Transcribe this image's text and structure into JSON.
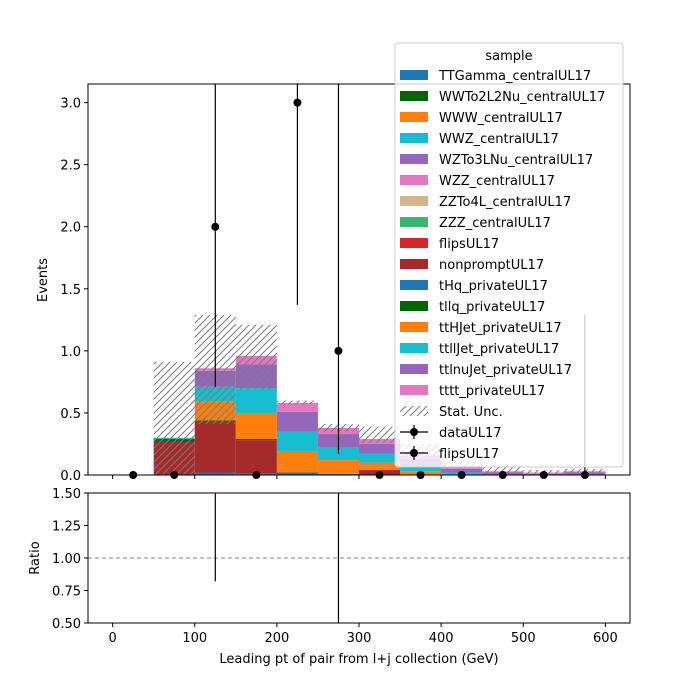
{
  "chart_data": [
    {
      "type": "bar",
      "subtype": "stacked-histogram",
      "xlabel": "",
      "ylabel": "Events",
      "xlim": [
        -30,
        630
      ],
      "ylim": [
        0,
        3.15
      ],
      "xticks": [
        0,
        100,
        200,
        300,
        400,
        500,
        600
      ],
      "yticks": [
        0.0,
        0.5,
        1.0,
        1.5,
        2.0,
        2.5,
        3.0
      ],
      "ytick_labels": [
        "0.0",
        "0.5",
        "1.0",
        "1.5",
        "2.0",
        "2.5",
        "3.0"
      ],
      "bin_edges": [
        0,
        50,
        100,
        150,
        200,
        250,
        300,
        350,
        400,
        450,
        500,
        550,
        600
      ],
      "stack": [
        {
          "name": "TTGamma_centralUL17",
          "color": "#1f77b4",
          "values": [
            0,
            0,
            0.02,
            0.01,
            0.02,
            0.01,
            0,
            0,
            0,
            0,
            0,
            0
          ]
        },
        {
          "name": "WWTo2L2Nu_centralUL17",
          "color": "#006400",
          "values": [
            0,
            0,
            0,
            0,
            0,
            0,
            0,
            0,
            0,
            0,
            0,
            0
          ]
        },
        {
          "name": "WWW_centralUL17",
          "color": "#ff7f0e",
          "values": [
            0,
            0,
            0,
            0,
            0,
            0,
            0,
            0,
            0,
            0,
            0,
            0
          ]
        },
        {
          "name": "WWZ_centralUL17",
          "color": "#17becf",
          "values": [
            0,
            0,
            0,
            0,
            0,
            0,
            0,
            0,
            0,
            0,
            0,
            0
          ]
        },
        {
          "name": "WZTo3LNu_centralUL17",
          "color": "#9467bd",
          "values": [
            0,
            0,
            0,
            0,
            0,
            0,
            0,
            0,
            0,
            0,
            0,
            0
          ]
        },
        {
          "name": "WZZ_centralUL17",
          "color": "#e377c2",
          "values": [
            0,
            0,
            0,
            0,
            0,
            0,
            0,
            0,
            0,
            0,
            0,
            0
          ]
        },
        {
          "name": "ZZTo4L_centralUL17",
          "color": "#d2b48c",
          "values": [
            0,
            0,
            0,
            0,
            0,
            0,
            0,
            0,
            0,
            0,
            0,
            0
          ]
        },
        {
          "name": "ZZZ_centralUL17",
          "color": "#3cb371",
          "values": [
            0,
            0,
            0,
            0,
            0,
            0,
            0,
            0,
            0,
            0,
            0,
            0
          ]
        },
        {
          "name": "flipsUL17",
          "color": "#d62728",
          "values": [
            0,
            0,
            0,
            0,
            0,
            0,
            0,
            0,
            0,
            0,
            0,
            0
          ]
        },
        {
          "name": "nonpromptUL17",
          "color": "#a52a2a",
          "values": [
            0,
            0.27,
            0.41,
            0.27,
            0,
            0,
            0.04,
            0,
            0,
            0,
            0,
            0
          ]
        },
        {
          "name": "tHq_privateUL17",
          "color": "#1f77b4",
          "values": [
            0,
            0,
            0,
            0,
            0,
            0,
            0,
            0,
            0,
            0,
            0,
            0
          ]
        },
        {
          "name": "tllq_privateUL17",
          "color": "#006400",
          "values": [
            0,
            0.02,
            0.01,
            0.01,
            0,
            0,
            0,
            0,
            0,
            0,
            0,
            0
          ]
        },
        {
          "name": "ttHJet_privateUL17",
          "color": "#ff7f0e",
          "values": [
            0,
            0,
            0.15,
            0.21,
            0.17,
            0.11,
            0.06,
            0.03,
            0,
            0,
            0,
            0
          ]
        },
        {
          "name": "ttllJet_privateUL17",
          "color": "#17becf",
          "values": [
            0,
            0.01,
            0.12,
            0.2,
            0.16,
            0.1,
            0.07,
            0.04,
            0.02,
            0,
            0,
            0
          ]
        },
        {
          "name": "ttlnuJet_privateUL17",
          "color": "#9467bd",
          "values": [
            0,
            0,
            0.13,
            0.19,
            0.16,
            0.11,
            0.08,
            0.06,
            0.03,
            0.02,
            0.01,
            0.02
          ]
        },
        {
          "name": "tttt_privateUL17",
          "color": "#e377c2",
          "values": [
            0,
            0,
            0.02,
            0.07,
            0.07,
            0.05,
            0.04,
            0.03,
            0.02,
            0.01,
            0.01,
            0.01
          ]
        }
      ],
      "stat_unc": {
        "name": "Stat. Unc.",
        "low": [
          0,
          0,
          0.41,
          0.69,
          0.57,
          0.35,
          0.26,
          0.15,
          0.06,
          0.02,
          0.01,
          0.02
        ],
        "high": [
          0,
          0.91,
          1.29,
          1.21,
          0.6,
          0.41,
          0.39,
          0.25,
          0.11,
          0.08,
          0.04,
          0.05
        ]
      },
      "data": {
        "name": "dataUL17",
        "x": [
          25,
          75,
          125,
          175,
          225,
          275,
          325,
          375,
          425,
          475,
          525,
          575
        ],
        "y": [
          0,
          0,
          2,
          0,
          3,
          1,
          0,
          0,
          0,
          0,
          0,
          0
        ],
        "yerr_low": [
          0,
          0,
          1.29,
          0,
          1.63,
          0.83,
          0,
          0,
          0,
          0,
          0,
          0
        ],
        "yerr_high": [
          0,
          0,
          2.64,
          0,
          2.92,
          2.3,
          0,
          0,
          0,
          0,
          0,
          1.29
        ]
      },
      "legend": {
        "title": "sample",
        "position": "upper right",
        "entries": [
          "TTGamma_centralUL17",
          "WWTo2L2Nu_centralUL17",
          "WWW_centralUL17",
          "WWZ_centralUL17",
          "WZTo3LNu_centralUL17",
          "WZZ_centralUL17",
          "ZZTo4L_centralUL17",
          "ZZZ_centralUL17",
          "flipsUL17",
          "nonpromptUL17",
          "tHq_privateUL17",
          "tllq_privateUL17",
          "ttHJet_privateUL17",
          "ttllJet_privateUL17",
          "ttlnuJet_privateUL17",
          "tttt_privateUL17",
          "Stat. Unc.",
          "dataUL17",
          "flipsUL17"
        ]
      },
      "grid": false
    },
    {
      "type": "scatter",
      "subtype": "ratio",
      "xlabel": "Leading pt of pair from l+j collection (GeV)",
      "ylabel": "Ratio",
      "xlim": [
        -30,
        630
      ],
      "ylim": [
        0.5,
        1.5
      ],
      "xticks": [
        0,
        100,
        200,
        300,
        400,
        500,
        600
      ],
      "xtick_labels": [
        "0",
        "100",
        "200",
        "300",
        "400",
        "500",
        "600"
      ],
      "yticks": [
        0.5,
        0.75,
        1.0,
        1.25,
        1.5
      ],
      "ytick_labels": [
        "0.50",
        "0.75",
        "1.00",
        "1.25",
        "1.50"
      ],
      "reference_line": 1.0,
      "error_bars": [
        {
          "x": 125,
          "low": 0.82,
          "high": 1.5
        },
        {
          "x": 275,
          "low": 0.5,
          "high": 1.5
        }
      ],
      "grid": false
    }
  ]
}
